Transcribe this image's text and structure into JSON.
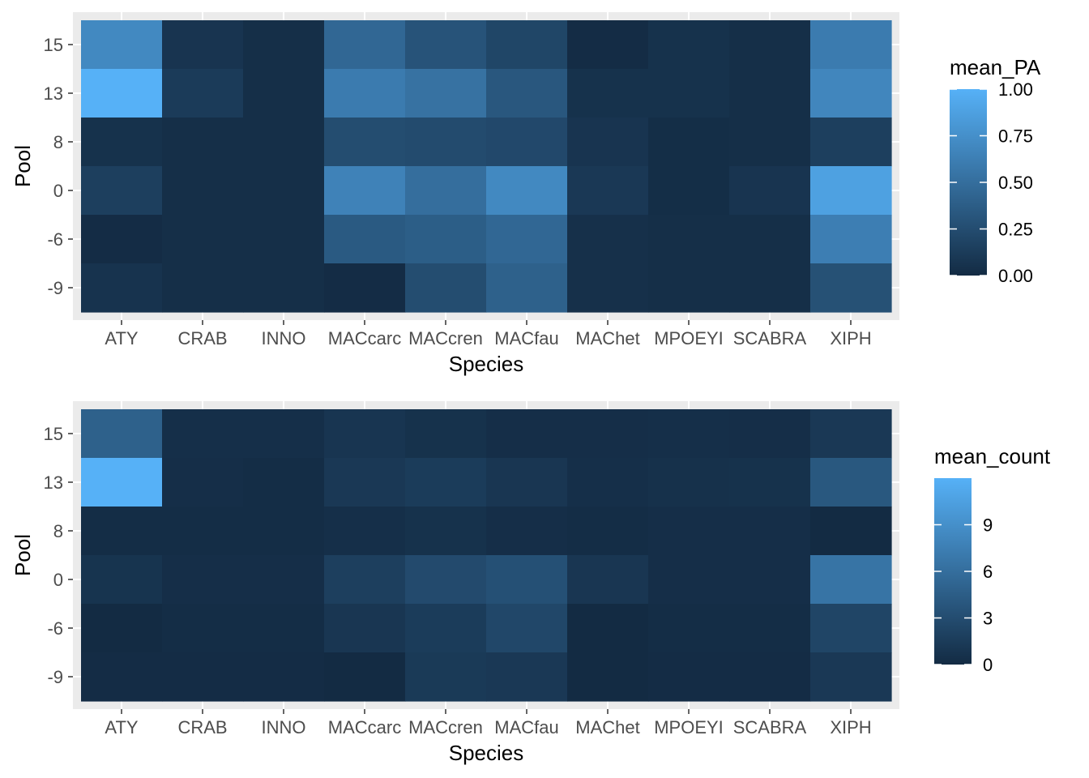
{
  "chart_data": [
    {
      "type": "heatmap",
      "title": "",
      "xlabel": "Species",
      "ylabel": "Pool",
      "x_categories": [
        "ATY",
        "CRAB",
        "INNO",
        "MACcarc",
        "MACcren",
        "MACfau",
        "MAChet",
        "MPOEYI",
        "SCABRA",
        "XIPH"
      ],
      "y_categories": [
        "15",
        "13",
        "8",
        "0",
        "-6",
        "-9"
      ],
      "values": [
        [
          0.7,
          0.07,
          0.03,
          0.45,
          0.3,
          0.2,
          0.01,
          0.05,
          0.03,
          0.6
        ],
        [
          1.0,
          0.12,
          0.03,
          0.6,
          0.53,
          0.33,
          0.05,
          0.05,
          0.03,
          0.68
        ],
        [
          0.05,
          0.03,
          0.03,
          0.25,
          0.24,
          0.22,
          0.07,
          0.02,
          0.03,
          0.15
        ],
        [
          0.15,
          0.03,
          0.03,
          0.65,
          0.5,
          0.7,
          0.1,
          0.02,
          0.07,
          0.88
        ],
        [
          0.01,
          0.03,
          0.03,
          0.35,
          0.38,
          0.45,
          0.04,
          0.03,
          0.03,
          0.62
        ],
        [
          0.06,
          0.03,
          0.03,
          0.01,
          0.25,
          0.4,
          0.04,
          0.03,
          0.03,
          0.28
        ]
      ],
      "legend": {
        "title": "mean_PA",
        "min": 0,
        "max": 1,
        "breaks": [
          0,
          0.25,
          0.5,
          0.75,
          1
        ],
        "break_labels": [
          "0.00",
          "0.25",
          "0.50",
          "0.75",
          "1.00"
        ],
        "low_color": "#132B43",
        "high_color": "#56B1F7",
        "position": "right"
      },
      "grid": true
    },
    {
      "type": "heatmap",
      "title": "",
      "xlabel": "Species",
      "ylabel": "Pool",
      "x_categories": [
        "ATY",
        "CRAB",
        "INNO",
        "MACcarc",
        "MACcren",
        "MACfau",
        "MAChet",
        "MPOEYI",
        "SCABRA",
        "XIPH"
      ],
      "y_categories": [
        "15",
        "13",
        "8",
        "0",
        "-6",
        "-9"
      ],
      "values": [
        [
          4.8,
          0.4,
          0.4,
          0.9,
          0.6,
          0.3,
          0.3,
          0.4,
          0.3,
          1.2
        ],
        [
          12.0,
          0.3,
          0.2,
          1.2,
          1.5,
          1.0,
          0.4,
          0.5,
          0.6,
          4.0
        ],
        [
          0.2,
          0.2,
          0.2,
          0.4,
          0.6,
          0.3,
          0.2,
          0.3,
          0.3,
          0.0
        ],
        [
          0.8,
          0.3,
          0.3,
          1.8,
          2.8,
          3.3,
          1.0,
          0.3,
          0.3,
          6.5
        ],
        [
          0.0,
          0.2,
          0.2,
          1.0,
          1.5,
          2.5,
          0.0,
          0.2,
          0.2,
          2.3
        ],
        [
          0.1,
          0.1,
          0.1,
          0.0,
          1.3,
          1.2,
          0.0,
          0.1,
          0.1,
          1.2
        ]
      ],
      "legend": {
        "title": "mean_count",
        "min": 0,
        "max": 12,
        "breaks": [
          0,
          3,
          6,
          9
        ],
        "break_labels": [
          "0",
          "3",
          "6",
          "9"
        ],
        "low_color": "#132B43",
        "high_color": "#56B1F7",
        "position": "right"
      },
      "grid": true
    }
  ]
}
